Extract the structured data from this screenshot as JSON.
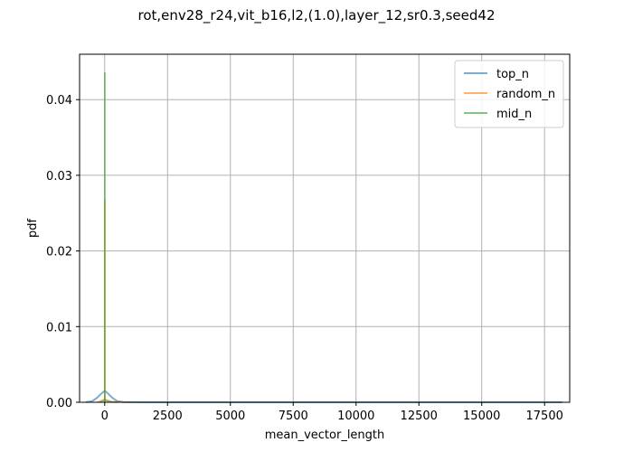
{
  "chart_data": {
    "type": "line",
    "title": "rot,env28_r24,vit_b16,l2,(1.0),layer_12,sr0.3,seed42",
    "xlabel": "mean_vector_length",
    "ylabel": "pdf",
    "xlim": [
      -1000,
      18500
    ],
    "ylim": [
      0,
      0.046
    ],
    "x_ticks": [
      0,
      2500,
      5000,
      7500,
      10000,
      12500,
      15000,
      17500
    ],
    "y_ticks": [
      0.0,
      0.01,
      0.02,
      0.03,
      0.04
    ],
    "x_tick_labels": [
      "0",
      "2500",
      "5000",
      "7500",
      "10000",
      "12500",
      "15000",
      "17500"
    ],
    "y_tick_labels": [
      "0.00",
      "0.01",
      "0.02",
      "0.03",
      "0.04"
    ],
    "grid": true,
    "legend_position": "top-right",
    "series": [
      {
        "name": "top_n",
        "color": "#1f77b4",
        "kind": "kde",
        "x": [
          -750,
          -500,
          -300,
          -150,
          -50,
          0,
          50,
          150,
          300,
          500,
          750,
          1000,
          1500,
          3000,
          6000,
          10000,
          14000,
          18200
        ],
        "y": [
          2e-05,
          0.00015,
          0.0006,
          0.0011,
          0.0014,
          0.00148,
          0.0014,
          0.0011,
          0.0006,
          0.00015,
          3e-05,
          1e-05,
          5e-06,
          2e-06,
          1e-06,
          8e-07,
          6e-07,
          5e-07
        ]
      },
      {
        "name": "random_n",
        "color": "#ff7f0e",
        "kind": "hist",
        "bins": [
          [
            -30,
            0,
            0.0268
          ],
          [
            0,
            30,
            0.0268
          ]
        ],
        "tail_x": [
          -300,
          0,
          300,
          700,
          1000
        ],
        "tail_y": [
          0.0,
          0.0004,
          0.0001,
          2e-05,
          0.0
        ]
      },
      {
        "name": "mid_n",
        "color": "#2ca02c",
        "kind": "hist",
        "bins": [
          [
            -30,
            0,
            0.0436
          ],
          [
            0,
            30,
            0.0436
          ]
        ],
        "tail_x": [
          -200,
          0,
          200,
          500
        ],
        "tail_y": [
          0.0,
          0.0003,
          5e-05,
          0.0
        ]
      }
    ]
  }
}
